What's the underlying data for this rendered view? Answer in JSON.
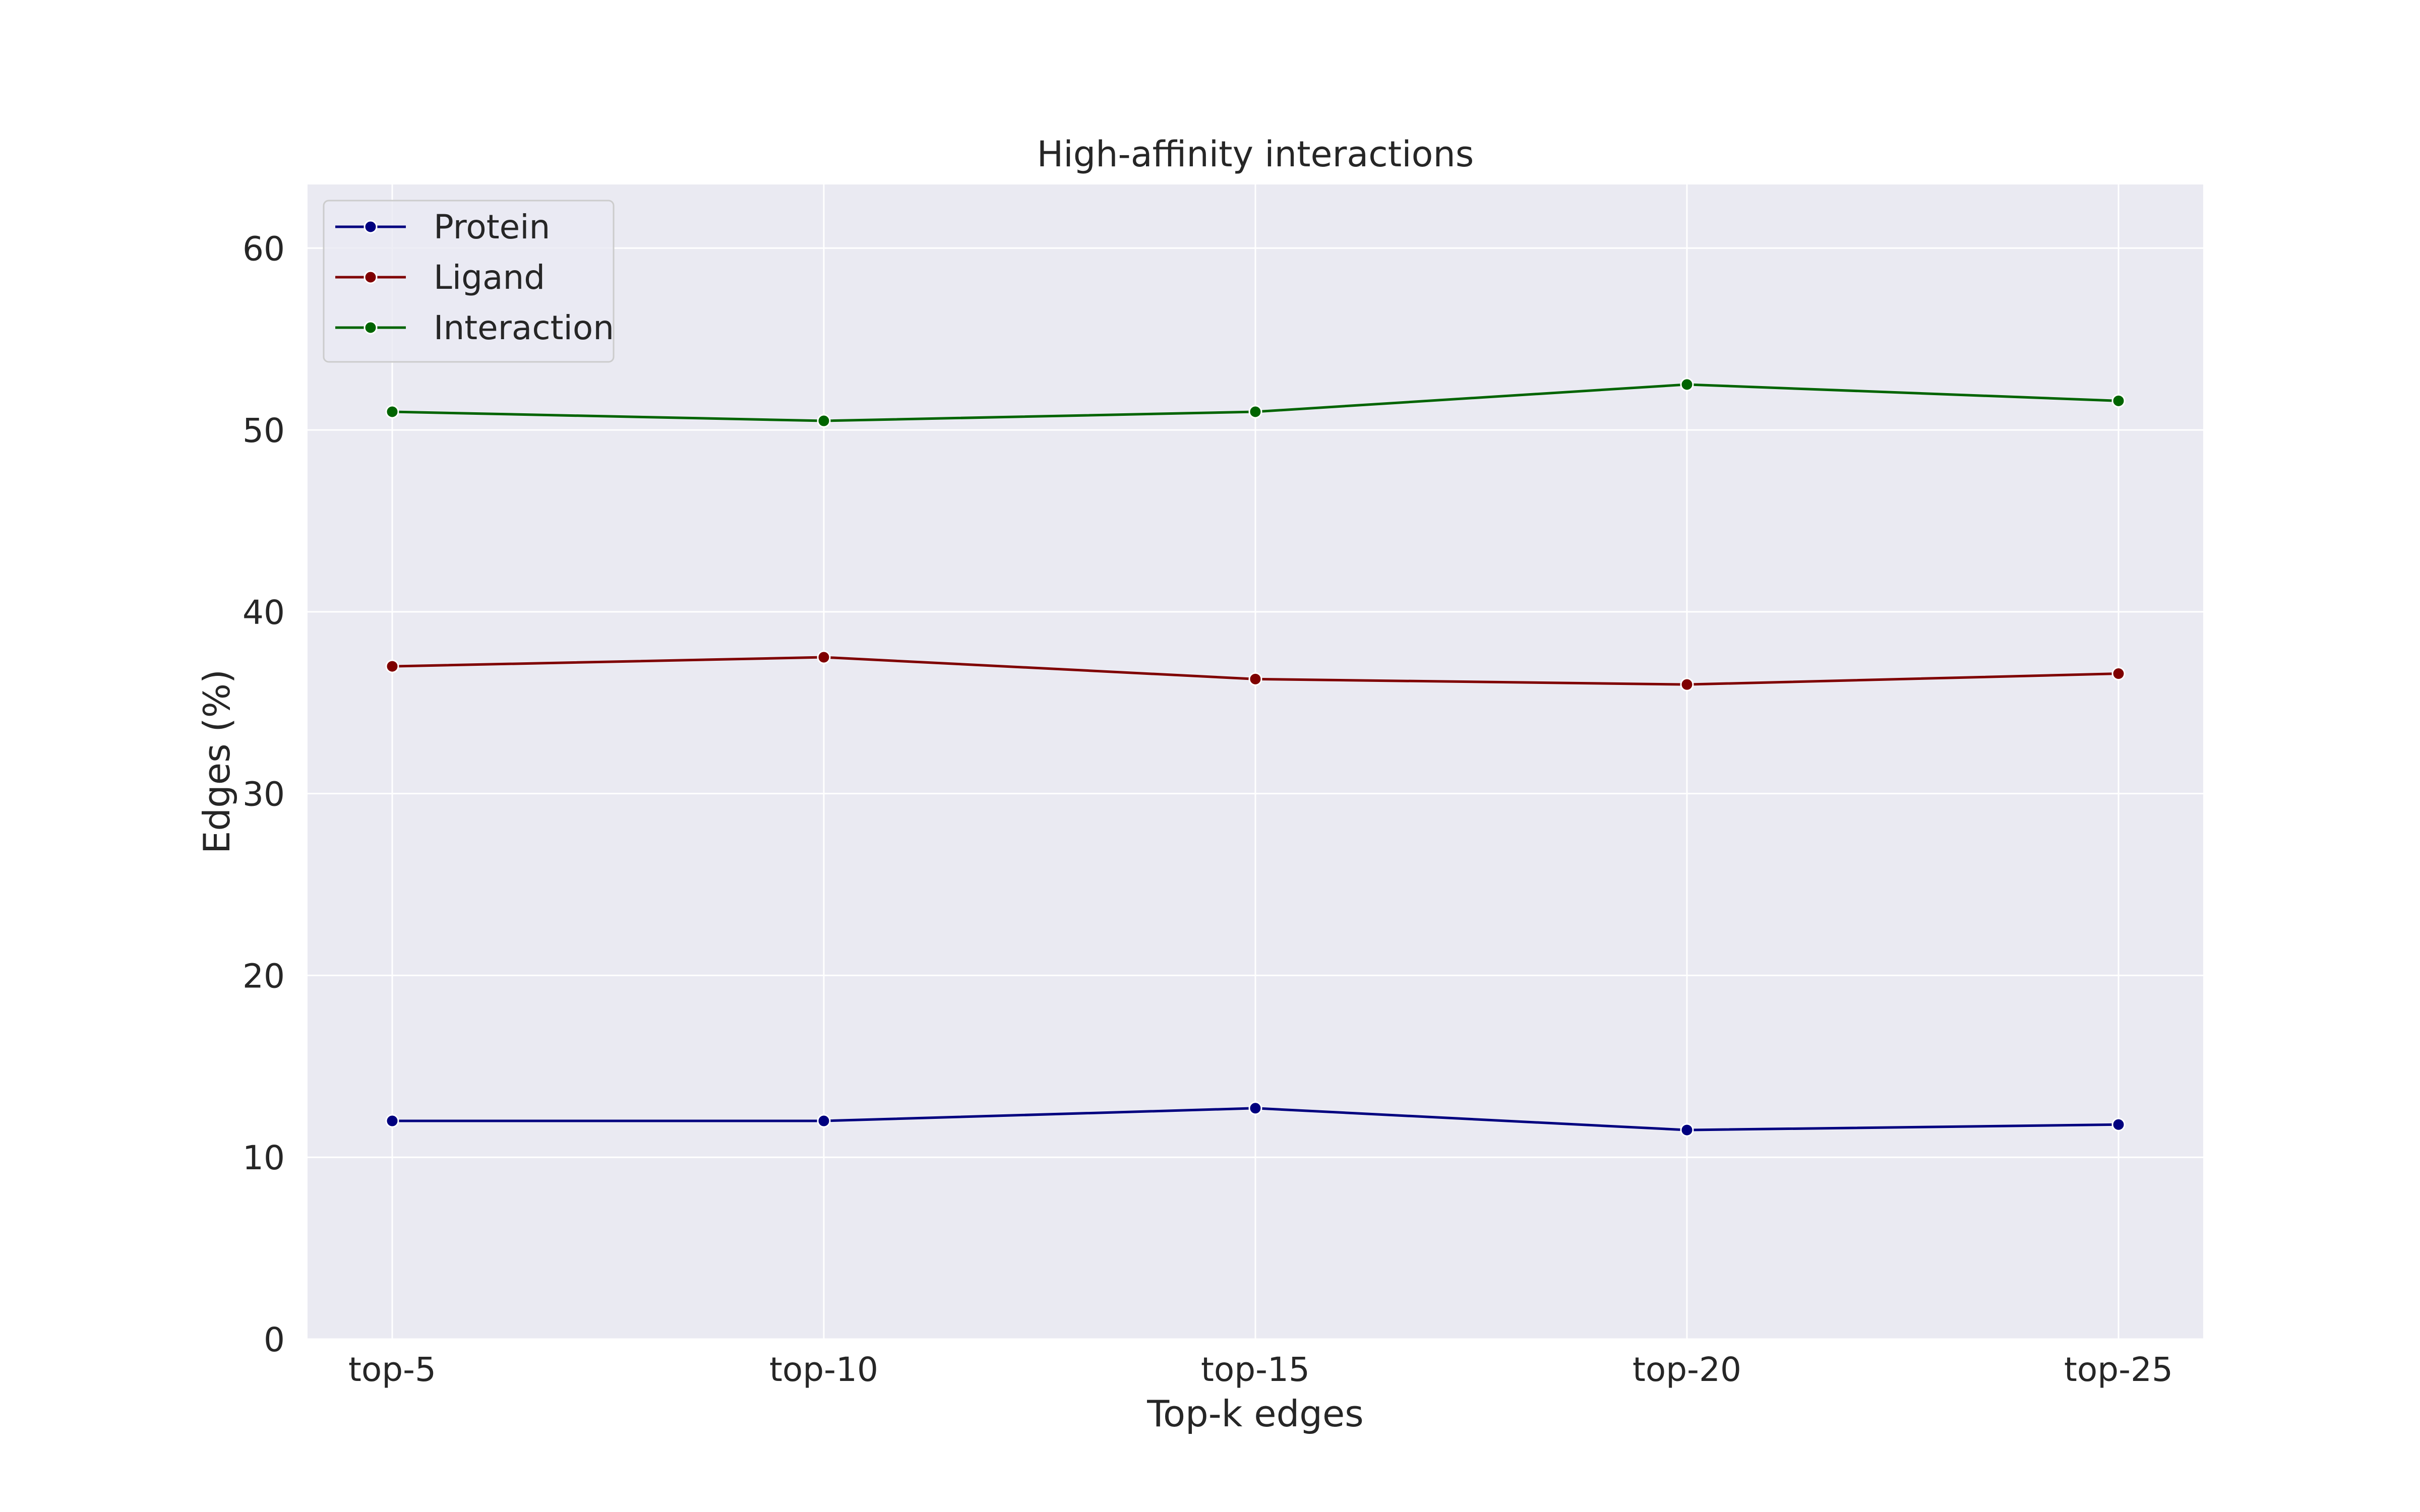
{
  "chart_data": {
    "type": "line",
    "title": "High-affinity interactions",
    "xlabel": "Top-k edges",
    "ylabel": "Edges (%)",
    "categories": [
      "top-5",
      "top-10",
      "top-15",
      "top-20",
      "top-25"
    ],
    "ylim": [
      0,
      63.5
    ],
    "yticks": [
      0,
      10,
      20,
      30,
      40,
      50,
      60
    ],
    "grid": true,
    "legend_position": "top-left",
    "plot_background": "#EAEAF2",
    "series": [
      {
        "name": "Protein",
        "color": "#00007F",
        "values": [
          12.0,
          12.0,
          12.7,
          11.5,
          11.8
        ]
      },
      {
        "name": "Ligand",
        "color": "#7F0000",
        "values": [
          37.0,
          37.5,
          36.3,
          36.0,
          36.6
        ]
      },
      {
        "name": "Interaction",
        "color": "#006400",
        "values": [
          51.0,
          50.5,
          51.0,
          52.5,
          51.6
        ]
      }
    ]
  }
}
